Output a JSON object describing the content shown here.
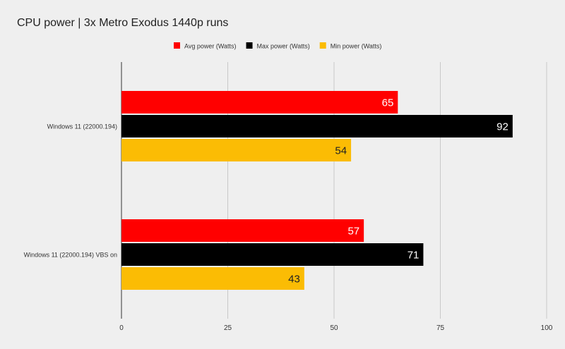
{
  "chart_data": {
    "type": "bar",
    "orientation": "horizontal",
    "title": "CPU power | 3x Metro Exodus 1440p runs",
    "categories": [
      "Windows 11 (22000.194)",
      "Windows 11 (22000.194) VBS on"
    ],
    "series": [
      {
        "name": "Avg power (Watts)",
        "color": "#ff0000",
        "values": [
          65,
          57
        ]
      },
      {
        "name": "Max power (Watts)",
        "color": "#000000",
        "values": [
          92,
          71
        ]
      },
      {
        "name": "Min power (Watts)",
        "color": "#fbbc04",
        "values": [
          54,
          43
        ]
      }
    ],
    "xlim": [
      0,
      100
    ],
    "xticks": [
      0,
      25,
      50,
      75,
      100
    ],
    "grid": true,
    "legend": "top",
    "data_labels": true
  }
}
